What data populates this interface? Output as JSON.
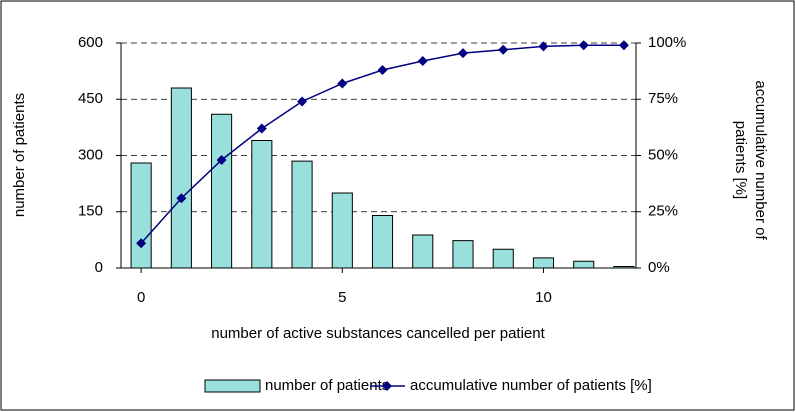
{
  "chart_data": {
    "type": "bar",
    "x_label": "number of active substances cancelled per patient",
    "y_label": "number of patients",
    "y2_label": "accumulative number of patients [%]",
    "x": [
      0,
      1,
      2,
      3,
      4,
      5,
      6,
      7,
      8,
      9,
      10,
      11,
      12
    ],
    "series": [
      {
        "name": "number of patients",
        "type": "bar",
        "color": "#99e0dc",
        "values": [
          280,
          480,
          410,
          340,
          285,
          200,
          140,
          88,
          73,
          50,
          27,
          18,
          4
        ]
      },
      {
        "name": "accumulative number of patients [%]",
        "type": "line",
        "axis": "y2",
        "color": "#000080",
        "values": [
          11,
          31,
          48,
          62,
          74,
          82,
          88,
          92,
          95.5,
          97,
          98.5,
          99,
          99
        ]
      }
    ],
    "xlim": [
      -0.5,
      12.3
    ],
    "xticks": [
      0,
      5,
      10
    ],
    "ylim": [
      0,
      600
    ],
    "yticks": [
      0,
      150,
      300,
      450,
      600
    ],
    "y2lim": [
      0,
      100
    ],
    "y2ticks": [
      {
        "value": 0,
        "label": "0%"
      },
      {
        "value": 25,
        "label": "25%"
      },
      {
        "value": 50,
        "label": "50%"
      },
      {
        "value": 75,
        "label": "75%"
      },
      {
        "value": 100,
        "label": "100%"
      }
    ],
    "grid": true,
    "legend": "bottom"
  }
}
